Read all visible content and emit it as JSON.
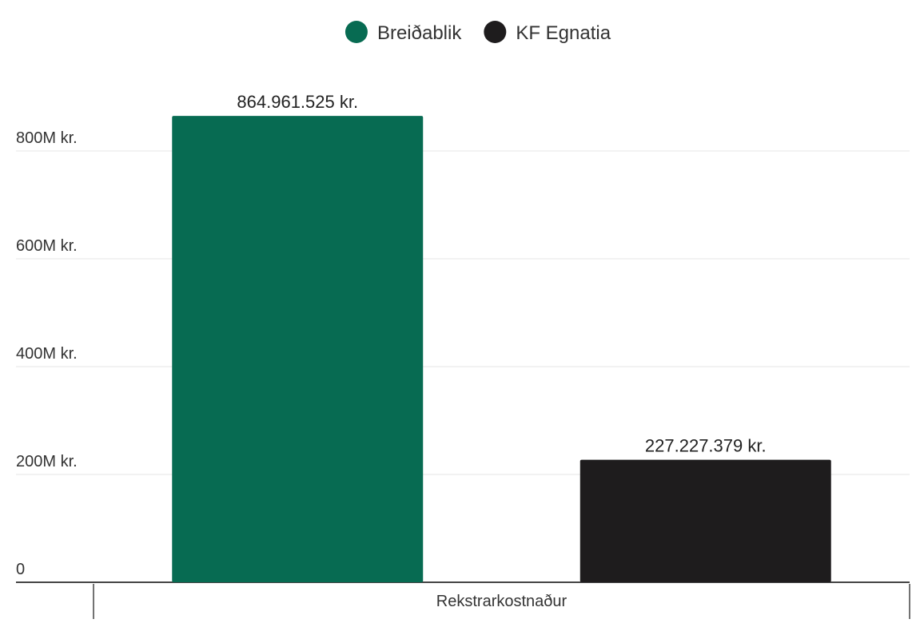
{
  "chart_data": {
    "type": "bar",
    "categories": [
      "Rekstrarkostnaður"
    ],
    "series": [
      {
        "name": "Breiðablik",
        "color": "#076b52",
        "values": [
          864961525
        ],
        "value_labels": [
          "864.961.525 kr."
        ]
      },
      {
        "name": "KF Egnatia",
        "color": "#1e1c1d",
        "values": [
          227227379
        ],
        "value_labels": [
          "227.227.379 kr."
        ]
      }
    ],
    "ylim": [
      0,
      900000000
    ],
    "yticks": [
      0,
      {
        "value": 200000000,
        "label": "200M kr."
      },
      {
        "value": 400000000,
        "label": "400M kr."
      },
      {
        "value": 600000000,
        "label": "600M kr."
      },
      {
        "value": 800000000,
        "label": "800M kr."
      }
    ],
    "grid": true,
    "legend": "top"
  }
}
